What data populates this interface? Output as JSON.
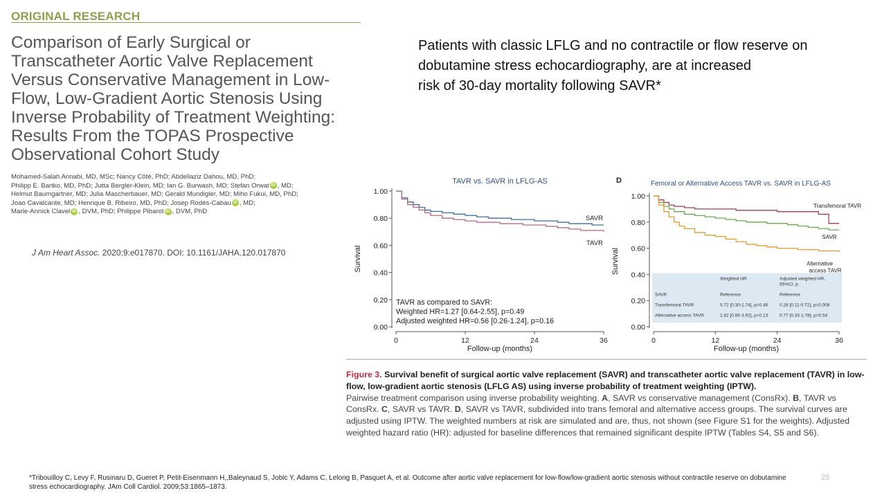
{
  "paper": {
    "kicker": "ORIGINAL RESEARCH",
    "title_lines": [
      "Comparison of Early Surgical or",
      "Transcatheter Aortic Valve Replacement",
      "Versus Conservative Management in Low-",
      "Flow, Low-Gradient Aortic Stenosis Using",
      "Inverse Probability of Treatment Weighting:",
      "Results From the TOPAS Prospective",
      "Observational Cohort Study"
    ],
    "authors": {
      "line1": "Mohamed-Salah Annabi, MD, MSc; Nancy Côté, PhD; Abdellaziz Dahou, MD, PhD;",
      "line2a": "Philipp E. Bartko, MD, PhD; Jutta Bergler-Klein, MD; Ian G. Burwash, MD; Stefan Orwat",
      "line2b": ", MD;",
      "line3": "Helmut Baumgartner, MD; Julia Mascherbauer, MD; Gerald Mundigler, MD; Miho Fukui, MD, PhD;",
      "line4a": "Joao Cavalcante, MD; Henrique B. Ribeiro, MD, PhD; Josep Rodés-Cabau",
      "line4b": ", MD;",
      "line5a": "Marie-Annick Clavel",
      "line5b": ", DVM, PhD; Philippe Pibarot",
      "line5c": ", DVM, PhD",
      "orcid_glyph": "iD"
    },
    "citation_journal": "J Am Heart Assoc.",
    "citation_rest": " 2020;9:e017870. DOI: 10.1161/JAHA.120.017870"
  },
  "headline": {
    "line1": "Patients with classic LFLG and no contractile or flow reserve on",
    "line2": "dobutamine stress echocardiography, are at increased",
    "line3": "risk of 30-day mortality following SAVR*"
  },
  "chart_data": [
    {
      "type": "line",
      "panel_label": "",
      "title": "TAVR vs. SAVR in LFLG-AS",
      "xlabel": "Follow-up (months)",
      "ylabel": "Survival",
      "xticks": [
        "0",
        "12",
        "24",
        "36"
      ],
      "yticks": [
        "0.00",
        "0.20",
        "0.40",
        "0.60",
        "0.80",
        "1.00"
      ],
      "xlim": [
        0,
        36
      ],
      "ylim": [
        0,
        1
      ],
      "grid": false,
      "series": [
        {
          "name": "SAVR",
          "color": "#3d6b9a",
          "x": [
            0,
            1,
            2,
            3,
            4,
            5,
            6,
            8,
            10,
            12,
            14,
            16,
            18,
            20,
            22,
            24,
            26,
            28,
            30,
            32,
            34,
            36
          ],
          "y": [
            1.0,
            0.95,
            0.92,
            0.9,
            0.88,
            0.86,
            0.85,
            0.84,
            0.83,
            0.82,
            0.81,
            0.8,
            0.8,
            0.79,
            0.79,
            0.78,
            0.78,
            0.77,
            0.76,
            0.76,
            0.75,
            0.75
          ]
        },
        {
          "name": "TAVR",
          "color": "#b06a7e",
          "x": [
            0,
            1,
            2,
            3,
            4,
            5,
            6,
            8,
            10,
            12,
            14,
            16,
            18,
            20,
            22,
            24,
            26,
            28,
            30,
            32,
            34,
            36
          ],
          "y": [
            1.0,
            0.94,
            0.9,
            0.88,
            0.86,
            0.84,
            0.82,
            0.8,
            0.79,
            0.78,
            0.77,
            0.77,
            0.76,
            0.76,
            0.75,
            0.75,
            0.74,
            0.73,
            0.72,
            0.71,
            0.71,
            0.7
          ]
        }
      ],
      "annotation": [
        "TAVR as compared to SAVR:",
        "Weighted HR=1.27 [0.64-2.55], p=0.49",
        "Adjusted weighted HR=0.56 [0.26-1.24], p=0.16"
      ]
    },
    {
      "type": "line",
      "panel_label": "D",
      "title": "Femoral or Alternative Access TAVR vs. SAVR in LFLG-AS",
      "xlabel": "Follow-up (months)",
      "ylabel": "Survival",
      "xticks": [
        "0",
        "12",
        "24",
        "36"
      ],
      "yticks": [
        "0.00",
        "0.20",
        "0.40",
        "0.60",
        "0.80",
        "1.00"
      ],
      "xlim": [
        0,
        36
      ],
      "ylim": [
        0,
        1
      ],
      "grid": false,
      "series": [
        {
          "name": "Transfemoral TAVR",
          "color": "#a23b4f",
          "x": [
            0,
            1,
            2,
            3,
            4,
            6,
            8,
            12,
            16,
            20,
            24,
            28,
            32,
            34,
            36
          ],
          "y": [
            1.0,
            0.97,
            0.95,
            0.93,
            0.92,
            0.91,
            0.9,
            0.9,
            0.89,
            0.89,
            0.88,
            0.88,
            0.86,
            0.79,
            0.79
          ]
        },
        {
          "name": "SAVR",
          "color": "#6aa84f",
          "x": [
            0,
            1,
            2,
            3,
            4,
            6,
            8,
            10,
            12,
            14,
            16,
            18,
            20,
            22,
            24,
            26,
            28,
            30,
            32,
            34,
            36
          ],
          "y": [
            1.0,
            0.95,
            0.92,
            0.9,
            0.88,
            0.86,
            0.85,
            0.84,
            0.83,
            0.82,
            0.81,
            0.8,
            0.8,
            0.79,
            0.79,
            0.78,
            0.77,
            0.76,
            0.75,
            0.74,
            0.74
          ]
        },
        {
          "name": "Alternative access TAVR",
          "color": "#e69b2c",
          "x": [
            0,
            1,
            2,
            3,
            4,
            5,
            6,
            8,
            10,
            12,
            14,
            16,
            18,
            20,
            22,
            24,
            26,
            28,
            30,
            32,
            34,
            36
          ],
          "y": [
            1.0,
            0.93,
            0.88,
            0.84,
            0.8,
            0.77,
            0.75,
            0.72,
            0.7,
            0.69,
            0.67,
            0.65,
            0.63,
            0.62,
            0.61,
            0.6,
            0.6,
            0.59,
            0.59,
            0.58,
            0.58,
            0.57
          ]
        }
      ],
      "table": {
        "header": [
          "",
          "Weighted HR",
          "Adjusted weighted HR, 95%CI, p"
        ],
        "rows": [
          [
            "SAVR",
            "Reference",
            "Reference"
          ],
          [
            "Transfemoral TAVR",
            "0.72 [0.30-1.74], p=0.46",
            "0.28 [0.11-0.72], p=0.008"
          ],
          [
            "Alternative access TAVR",
            "1.82 [0.85-3.92], p=0.13",
            "0.77 [0.33-1.78], p=0.54"
          ]
        ]
      }
    }
  ],
  "caption": {
    "label": "Figure 3.",
    "title": "   Survival benefit of surgical aortic valve replacement (SAVR) and transcatheter aortic valve replacement (TAVR) in low-flow, low-gradient aortic stenosis (LFLG AS) using inverse probability of treatment weighting (IPTW).",
    "body_1": "Pairwise treatment comparison using inverse probability weighting. ",
    "A": "A",
    "body_2": ", SAVR vs conservative management (ConsRx). ",
    "B": "B",
    "body_3": ", TAVR vs ConsRx. ",
    "C": "C",
    "body_4": ", SAVR vs TAVR. ",
    "D": "D",
    "body_5": ", SAVR vs TAVR, subdivided into trans femoral and alternative access groups. The survival curves are adjusted using IPTW. The weighted numbers at risk are simulated and are, thus, not shown (see Figure S1 for the weights). Adjusted weighted hazard ratio (HR): adjusted for baseline differences that remained significant despite IPTW (Tables S4, S5 and S6)."
  },
  "footnote": {
    "line1": "*Tribouilloy C, Levy F, Rusinaru D, Gueret P, Petit-Eisenmann H,,Baleynaud S, Jobic Y, Adams C, Lelong B, Pasquet A, et al. Outcome after aortic valve replacement for low-flow/low-gradient aortic stenosis without contractile reserve on dobutamine",
    "line2": "stress echocardiography. JAm Coll Cardiol. 2009;53:1865–1873."
  },
  "slide_number": "25"
}
